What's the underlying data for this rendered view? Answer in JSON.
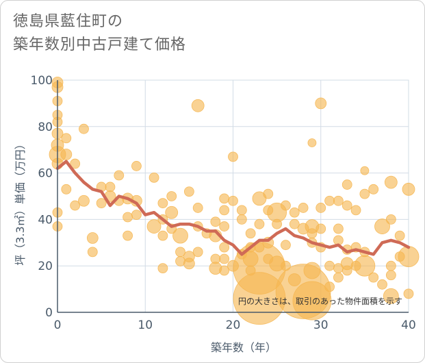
{
  "title_lines": [
    "徳島県藍住町の",
    "築年数別中古戸建て価格"
  ],
  "colors": {
    "bubble": "#f5b651",
    "line": "#cf6a56",
    "grid": "#d2dce6",
    "axis": "#4a5a6a",
    "text": "#666666"
  },
  "chart_data": {
    "type": "scatter",
    "title": "徳島県藍住町の築年数別中古戸建て価格",
    "xlabel": "築年数（年）",
    "ylabel": "坪（3.3㎡）単価（万円）",
    "xlim": [
      0,
      40
    ],
    "ylim": [
      0,
      100
    ],
    "x_ticks": [
      0,
      10,
      20,
      30,
      40
    ],
    "y_ticks": [
      0,
      20,
      40,
      60,
      80,
      100
    ],
    "grid": true,
    "annotation": "円の大きさは、取引のあった物件面積を示す",
    "series": [
      {
        "type": "bubble",
        "points": [
          {
            "x": 0,
            "y": 99,
            "s": 8
          },
          {
            "x": 0,
            "y": 97,
            "s": 8
          },
          {
            "x": 0,
            "y": 91,
            "s": 7
          },
          {
            "x": 0,
            "y": 85,
            "s": 7
          },
          {
            "x": 0,
            "y": 82,
            "s": 7
          },
          {
            "x": 0,
            "y": 77,
            "s": 8
          },
          {
            "x": 0,
            "y": 72,
            "s": 9
          },
          {
            "x": 0,
            "y": 68,
            "s": 12
          },
          {
            "x": 0,
            "y": 64,
            "s": 8
          },
          {
            "x": 0,
            "y": 43,
            "s": 7
          },
          {
            "x": 0,
            "y": 37,
            "s": 7
          },
          {
            "x": 1,
            "y": 75,
            "s": 7
          },
          {
            "x": 1,
            "y": 68,
            "s": 8
          },
          {
            "x": 1,
            "y": 53,
            "s": 7
          },
          {
            "x": 2,
            "y": 64,
            "s": 7
          },
          {
            "x": 2,
            "y": 46,
            "s": 7
          },
          {
            "x": 3,
            "y": 79,
            "s": 7
          },
          {
            "x": 3,
            "y": 48,
            "s": 8
          },
          {
            "x": 4,
            "y": 32,
            "s": 8
          },
          {
            "x": 4,
            "y": 26,
            "s": 7
          },
          {
            "x": 5,
            "y": 54,
            "s": 7
          },
          {
            "x": 5,
            "y": 47,
            "s": 7
          },
          {
            "x": 6,
            "y": 54,
            "s": 7
          },
          {
            "x": 6,
            "y": 50,
            "s": 8
          },
          {
            "x": 7,
            "y": 59,
            "s": 7
          },
          {
            "x": 7,
            "y": 48,
            "s": 7
          },
          {
            "x": 8,
            "y": 49,
            "s": 8
          },
          {
            "x": 8,
            "y": 41,
            "s": 7
          },
          {
            "x": 8,
            "y": 33,
            "s": 7
          },
          {
            "x": 9,
            "y": 63,
            "s": 7
          },
          {
            "x": 9,
            "y": 48,
            "s": 8
          },
          {
            "x": 9,
            "y": 42,
            "s": 7
          },
          {
            "x": 11,
            "y": 58,
            "s": 7
          },
          {
            "x": 11,
            "y": 37,
            "s": 10
          },
          {
            "x": 12,
            "y": 47,
            "s": 7
          },
          {
            "x": 12,
            "y": 40,
            "s": 7
          },
          {
            "x": 12,
            "y": 33,
            "s": 7
          },
          {
            "x": 12,
            "y": 19,
            "s": 7
          },
          {
            "x": 13,
            "y": 50,
            "s": 7
          },
          {
            "x": 13,
            "y": 43,
            "s": 9
          },
          {
            "x": 13,
            "y": 36,
            "s": 7
          },
          {
            "x": 14,
            "y": 33,
            "s": 11
          },
          {
            "x": 14,
            "y": 26,
            "s": 7
          },
          {
            "x": 14,
            "y": 22,
            "s": 7
          },
          {
            "x": 15,
            "y": 52,
            "s": 7
          },
          {
            "x": 15,
            "y": 24,
            "s": 8
          },
          {
            "x": 15,
            "y": 21,
            "s": 8
          },
          {
            "x": 16,
            "y": 89,
            "s": 9
          },
          {
            "x": 16,
            "y": 45,
            "s": 7
          },
          {
            "x": 16,
            "y": 37,
            "s": 7
          },
          {
            "x": 16,
            "y": 26,
            "s": 7
          },
          {
            "x": 17,
            "y": 34,
            "s": 7
          },
          {
            "x": 18,
            "y": 39,
            "s": 7
          },
          {
            "x": 18,
            "y": 33,
            "s": 9
          },
          {
            "x": 18,
            "y": 23,
            "s": 7
          },
          {
            "x": 18,
            "y": 19,
            "s": 9
          },
          {
            "x": 19,
            "y": 49,
            "s": 7
          },
          {
            "x": 19,
            "y": 44,
            "s": 7
          },
          {
            "x": 19,
            "y": 37,
            "s": 7
          },
          {
            "x": 19,
            "y": 28,
            "s": 7
          },
          {
            "x": 19,
            "y": 23,
            "s": 7
          },
          {
            "x": 19,
            "y": 18,
            "s": 7
          },
          {
            "x": 20,
            "y": 67,
            "s": 7
          },
          {
            "x": 20,
            "y": 48,
            "s": 7
          },
          {
            "x": 20,
            "y": 20,
            "s": 8
          },
          {
            "x": 21,
            "y": 44,
            "s": 7
          },
          {
            "x": 21,
            "y": 40,
            "s": 7
          },
          {
            "x": 21,
            "y": 25,
            "s": 7
          },
          {
            "x": 22,
            "y": 34,
            "s": 7
          },
          {
            "x": 22,
            "y": 28,
            "s": 7
          },
          {
            "x": 22,
            "y": 23,
            "s": 11
          },
          {
            "x": 22,
            "y": 18,
            "s": 7
          },
          {
            "x": 23,
            "y": 49,
            "s": 10
          },
          {
            "x": 23,
            "y": 38,
            "s": 7
          },
          {
            "x": 23,
            "y": 28,
            "s": 7
          },
          {
            "x": 23,
            "y": 19,
            "s": 38
          },
          {
            "x": 23,
            "y": 6,
            "s": 38
          },
          {
            "x": 24,
            "y": 51,
            "s": 7
          },
          {
            "x": 24,
            "y": 44,
            "s": 7
          },
          {
            "x": 24,
            "y": 30,
            "s": 8
          },
          {
            "x": 24,
            "y": 23,
            "s": 7
          },
          {
            "x": 25,
            "y": 43,
            "s": 14
          },
          {
            "x": 25,
            "y": 38,
            "s": 7
          },
          {
            "x": 25,
            "y": 21,
            "s": 11
          },
          {
            "x": 26,
            "y": 46,
            "s": 7
          },
          {
            "x": 26,
            "y": 29,
            "s": 7
          },
          {
            "x": 26,
            "y": 20,
            "s": 7
          },
          {
            "x": 27,
            "y": 43,
            "s": 7
          },
          {
            "x": 27,
            "y": 38,
            "s": 7
          },
          {
            "x": 27,
            "y": 14,
            "s": 9
          },
          {
            "x": 28,
            "y": 45,
            "s": 7
          },
          {
            "x": 28,
            "y": 36,
            "s": 8
          },
          {
            "x": 28,
            "y": 9,
            "s": 40
          },
          {
            "x": 29,
            "y": 73,
            "s": 6
          },
          {
            "x": 29,
            "y": 37,
            "s": 10
          },
          {
            "x": 29,
            "y": 34,
            "s": 7
          },
          {
            "x": 29,
            "y": 30,
            "s": 7
          },
          {
            "x": 29,
            "y": 18,
            "s": 12
          },
          {
            "x": 29,
            "y": 5,
            "s": 28
          },
          {
            "x": 30,
            "y": 90,
            "s": 8
          },
          {
            "x": 30,
            "y": 45,
            "s": 7
          },
          {
            "x": 30,
            "y": 36,
            "s": 7
          },
          {
            "x": 30,
            "y": 28,
            "s": 7
          },
          {
            "x": 31,
            "y": 48,
            "s": 7
          },
          {
            "x": 31,
            "y": 20,
            "s": 7
          },
          {
            "x": 31,
            "y": 11,
            "s": 7
          },
          {
            "x": 32,
            "y": 48,
            "s": 7
          },
          {
            "x": 32,
            "y": 36,
            "s": 7
          },
          {
            "x": 32,
            "y": 31,
            "s": 7
          },
          {
            "x": 32,
            "y": 19,
            "s": 7
          },
          {
            "x": 32,
            "y": 15,
            "s": 7
          },
          {
            "x": 33,
            "y": 55,
            "s": 7
          },
          {
            "x": 33,
            "y": 46,
            "s": 7
          },
          {
            "x": 33,
            "y": 27,
            "s": 7
          },
          {
            "x": 33,
            "y": 21,
            "s": 9
          },
          {
            "x": 33,
            "y": 18,
            "s": 7
          },
          {
            "x": 34,
            "y": 44,
            "s": 7
          },
          {
            "x": 34,
            "y": 28,
            "s": 7
          },
          {
            "x": 34,
            "y": 20,
            "s": 7
          },
          {
            "x": 35,
            "y": 61,
            "s": 6
          },
          {
            "x": 35,
            "y": 51,
            "s": 7
          },
          {
            "x": 35,
            "y": 26,
            "s": 7
          },
          {
            "x": 35,
            "y": 20,
            "s": 15
          },
          {
            "x": 36,
            "y": 53,
            "s": 7
          },
          {
            "x": 36,
            "y": 15,
            "s": 7
          },
          {
            "x": 37,
            "y": 37,
            "s": 11
          },
          {
            "x": 37,
            "y": 12,
            "s": 7
          },
          {
            "x": 38,
            "y": 56,
            "s": 9
          },
          {
            "x": 38,
            "y": 40,
            "s": 7
          },
          {
            "x": 38,
            "y": 20,
            "s": 7
          },
          {
            "x": 38,
            "y": 16,
            "s": 7
          },
          {
            "x": 38,
            "y": 7,
            "s": 11
          },
          {
            "x": 39,
            "y": 33,
            "s": 7
          },
          {
            "x": 39,
            "y": 24,
            "s": 7
          },
          {
            "x": 40,
            "y": 53,
            "s": 9
          },
          {
            "x": 40,
            "y": 24,
            "s": 15
          },
          {
            "x": 40,
            "y": 8,
            "s": 7
          }
        ]
      },
      {
        "type": "line",
        "x": [
          0,
          1,
          2,
          3,
          4,
          5,
          6,
          7,
          8,
          9,
          10,
          11,
          12,
          13,
          14,
          15,
          16,
          17,
          18,
          19,
          20,
          21,
          22,
          23,
          24,
          25,
          26,
          27,
          28,
          29,
          30,
          31,
          32,
          33,
          34,
          35,
          36,
          37,
          38,
          39,
          40
        ],
        "y": [
          62,
          65,
          60,
          56,
          53,
          52,
          46,
          50,
          49,
          47,
          42,
          43,
          40,
          37,
          38,
          38,
          37,
          35,
          35,
          31,
          29,
          25,
          28,
          31,
          31,
          34,
          36,
          33,
          32,
          30,
          29,
          28,
          29,
          26,
          27,
          26,
          25,
          30,
          31,
          30,
          28
        ]
      }
    ]
  }
}
